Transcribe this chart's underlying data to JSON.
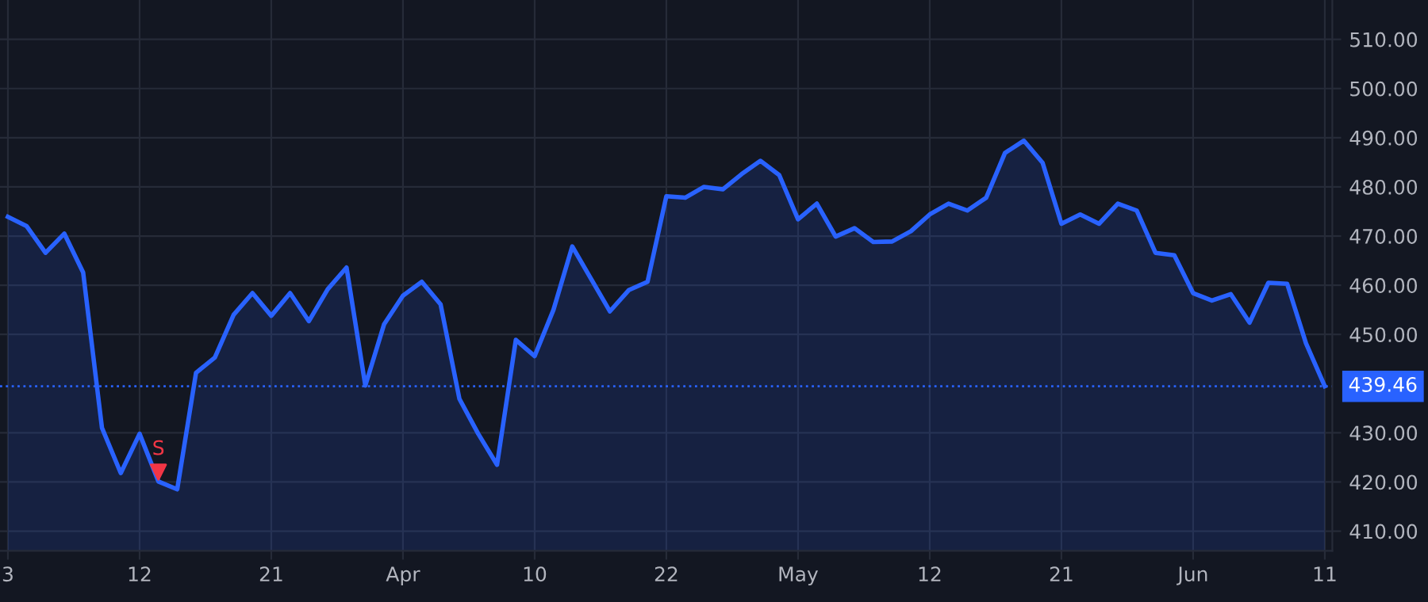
{
  "chart_data": {
    "type": "area",
    "categories": [
      "3",
      null,
      null,
      null,
      null,
      null,
      null,
      "12",
      null,
      null,
      null,
      null,
      null,
      null,
      "21",
      null,
      null,
      null,
      null,
      null,
      null,
      "Apr",
      null,
      null,
      null,
      null,
      null,
      null,
      "10",
      null,
      null,
      null,
      null,
      null,
      null,
      "22",
      null,
      null,
      null,
      null,
      null,
      null,
      "May",
      null,
      null,
      null,
      null,
      null,
      null,
      "12",
      null,
      null,
      null,
      null,
      null,
      null,
      "21",
      null,
      null,
      null,
      null,
      null,
      null,
      "Jun",
      null,
      null,
      null,
      null,
      null,
      null,
      "11"
    ],
    "series": [
      {
        "color": "#2962ff",
        "values": [
          473.9,
          472.0,
          466.6,
          470.5,
          462.6,
          431.0,
          421.8,
          429.8,
          420.1,
          418.5,
          442.2,
          445.3,
          454.0,
          458.4,
          453.8,
          458.4,
          452.7,
          459.2,
          463.6,
          439.6,
          452.1,
          457.9,
          460.7,
          456.1,
          436.9,
          429.8,
          423.5,
          448.9,
          445.6,
          455.0,
          467.9,
          461.3,
          454.7,
          459.0,
          460.7,
          478.1,
          477.8,
          480.0,
          479.5,
          482.6,
          485.3,
          482.4,
          473.4,
          476.6,
          469.9,
          471.6,
          468.8,
          468.9,
          471.0,
          474.4,
          476.6,
          475.2,
          477.8,
          486.9,
          489.4,
          484.9,
          472.5,
          474.4,
          472.5,
          476.6,
          475.2,
          466.6,
          466.1,
          458.4,
          456.9,
          458.2,
          452.4,
          460.5,
          460.3,
          448.2,
          439.46
        ]
      },
      {
        "type": "scatter",
        "name": "S",
        "color": "#f23645",
        "marker": "triangle",
        "values": [
          null,
          null,
          null,
          null,
          null,
          null,
          null,
          null,
          422,
          null,
          null,
          null,
          null,
          null,
          null,
          null,
          null,
          null,
          null,
          null,
          null,
          null,
          null,
          null,
          null,
          null,
          null,
          null,
          null,
          null,
          null,
          null,
          null,
          null,
          null,
          null,
          null,
          null,
          null,
          null,
          null,
          null,
          null,
          null,
          null,
          null,
          null,
          null,
          null,
          null,
          null,
          null,
          null,
          null,
          null,
          null,
          null,
          null,
          null,
          null,
          null,
          null,
          null,
          null,
          null,
          null,
          null,
          null,
          null,
          null,
          null
        ]
      }
    ],
    "ylim": [
      406,
      518
    ],
    "yticks": [
      {
        "value": 410,
        "label": "410.00"
      },
      {
        "value": 420,
        "label": "420.00"
      },
      {
        "value": 430,
        "label": "430.00"
      },
      {
        "value": 450,
        "label": "450.00"
      },
      {
        "value": 460,
        "label": "460.00"
      },
      {
        "value": 470,
        "label": "470.00"
      },
      {
        "value": 480,
        "label": "480.00"
      },
      {
        "value": 490,
        "label": "490.00"
      },
      {
        "value": 500,
        "label": "500.00"
      },
      {
        "value": 510,
        "label": "510.00"
      }
    ],
    "ref_lines": [
      {
        "axis": "y",
        "value": 439.46,
        "label": "439.46",
        "color": "#2962ff",
        "line_style": "dotted"
      }
    ],
    "grid": true
  }
}
